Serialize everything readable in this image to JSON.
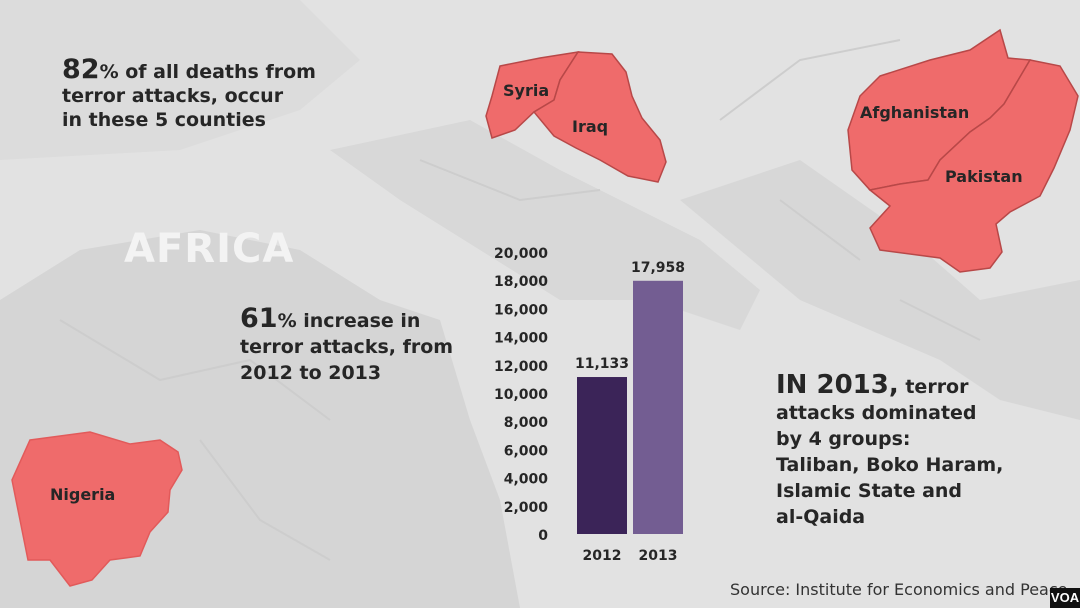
{
  "stat_deaths": {
    "number": "82",
    "text": "% of all deaths from",
    "line2": "terror attacks, occur",
    "line3": "in these 5 counties"
  },
  "stat_increase": {
    "number": "61",
    "text": "% increase in",
    "line2": "terror attacks, from",
    "line3": "2012 to 2013"
  },
  "stat_groups": {
    "lead": "IN 2013,",
    "text": " terror",
    "line2": "attacks dominated",
    "line3": "by 4 groups:",
    "line4": "Taliban, Boko Haram,",
    "line5": "Islamic State and",
    "line6": "al-Qaida"
  },
  "region_label": "AFRICA",
  "countries": [
    "Syria",
    "Iraq",
    "Afghanistan",
    "Pakistan",
    "Nigeria"
  ],
  "source": "Source: Institute for Economics and Peace",
  "logo": "VOA",
  "colors": {
    "country_fill": "#ef6b6b",
    "bar_2012": "#3b2458",
    "bar_2013": "#735d92"
  },
  "chart_data": {
    "type": "bar",
    "categories": [
      "2012",
      "2013"
    ],
    "values": [
      11133,
      17958
    ],
    "data_labels": [
      "11,133",
      "17,958"
    ],
    "ylim": [
      0,
      20000
    ],
    "yticks": [
      0,
      2000,
      4000,
      6000,
      8000,
      10000,
      12000,
      14000,
      16000,
      18000,
      20000
    ],
    "ytick_labels": [
      "0",
      "2,000",
      "4,000",
      "6,000",
      "8,000",
      "10,000",
      "12,000",
      "14,000",
      "16,000",
      "18,000",
      "20,000"
    ],
    "grid": false
  }
}
